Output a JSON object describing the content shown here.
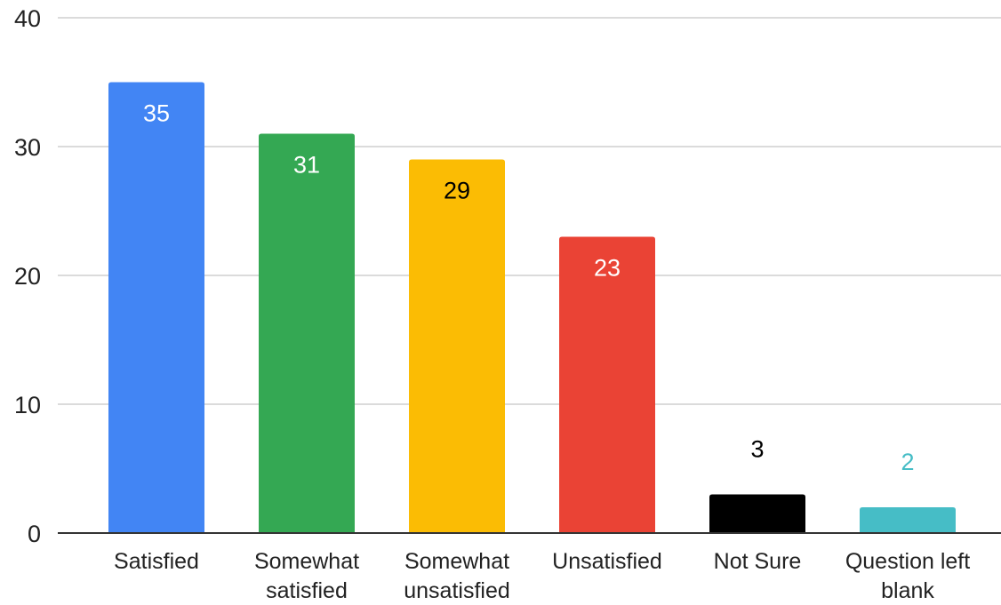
{
  "chart_data": {
    "type": "bar",
    "title": "",
    "xlabel": "",
    "ylabel": "",
    "ylim": [
      0,
      40
    ],
    "yticks": [
      0,
      10,
      20,
      30,
      40
    ],
    "grid": true,
    "legend": "none",
    "categories": [
      [
        "Satisfied"
      ],
      [
        "Somewhat",
        "satisfied"
      ],
      [
        "Somewhat",
        "unsatisfied"
      ],
      [
        "Unsatisfied"
      ],
      [
        "Not Sure"
      ],
      [
        "Question left",
        "blank"
      ]
    ],
    "values": [
      35,
      31,
      29,
      23,
      3,
      2
    ],
    "data_labels": [
      "35",
      "31",
      "29",
      "23",
      "3",
      "2"
    ],
    "bar_colors": [
      "#4285f4",
      "#34a853",
      "#fbbc04",
      "#ea4335",
      "#000000",
      "#46bdc6"
    ],
    "label_colors": [
      "#ffffff",
      "#ffffff",
      "#000000",
      "#ffffff",
      "#000000",
      "#46bdc6"
    ],
    "label_position": [
      "inside",
      "inside",
      "inside",
      "inside",
      "outside",
      "outside"
    ]
  }
}
